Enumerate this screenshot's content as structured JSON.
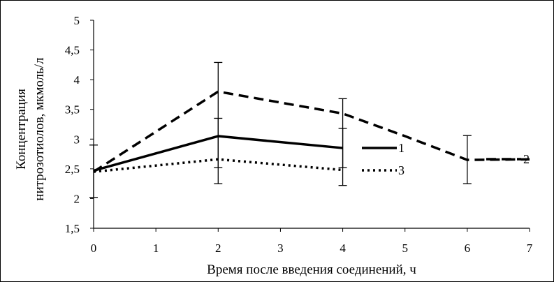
{
  "chart_data": {
    "type": "line",
    "xlabel": "Время после введения соединений, ч",
    "ylabel_line1": "Концентрация",
    "ylabel_line2": "нитрозотиолов, мкмоль/л",
    "xlim": [
      0,
      7
    ],
    "ylim": [
      1.5,
      5
    ],
    "x_ticks": [
      "0",
      "1",
      "2",
      "3",
      "4",
      "5",
      "6",
      "7"
    ],
    "y_ticks": [
      "1,5",
      "2",
      "2,5",
      "3",
      "3,5",
      "4",
      "4,5",
      "5"
    ],
    "grid": false,
    "legend_position": "right",
    "series": [
      {
        "name": "1",
        "style": "solid",
        "color": "#000000",
        "x": [
          0,
          2,
          4
        ],
        "y": [
          2.47,
          3.05,
          2.85
        ]
      },
      {
        "name": "2",
        "style": "dashed",
        "color": "#000000",
        "x": [
          0,
          2,
          4,
          5,
          6,
          7
        ],
        "y": [
          2.45,
          3.8,
          3.43,
          3.05,
          2.65,
          2.66
        ]
      },
      {
        "name": "3",
        "style": "dotted",
        "color": "#000000",
        "x": [
          0,
          2,
          4
        ],
        "y": [
          2.45,
          2.66,
          2.48
        ]
      }
    ],
    "error_bars": [
      {
        "x": 0,
        "low": 2.02,
        "high": 2.9
      },
      {
        "x": 2,
        "low": 2.25,
        "high": 4.29
      },
      {
        "x": 2,
        "low": 2.52,
        "high": 3.35
      },
      {
        "x": 4,
        "low": 2.22,
        "high": 3.68
      },
      {
        "x": 4,
        "low": 2.52,
        "high": 3.18
      },
      {
        "x": 6,
        "low": 2.25,
        "high": 3.06
      }
    ]
  }
}
